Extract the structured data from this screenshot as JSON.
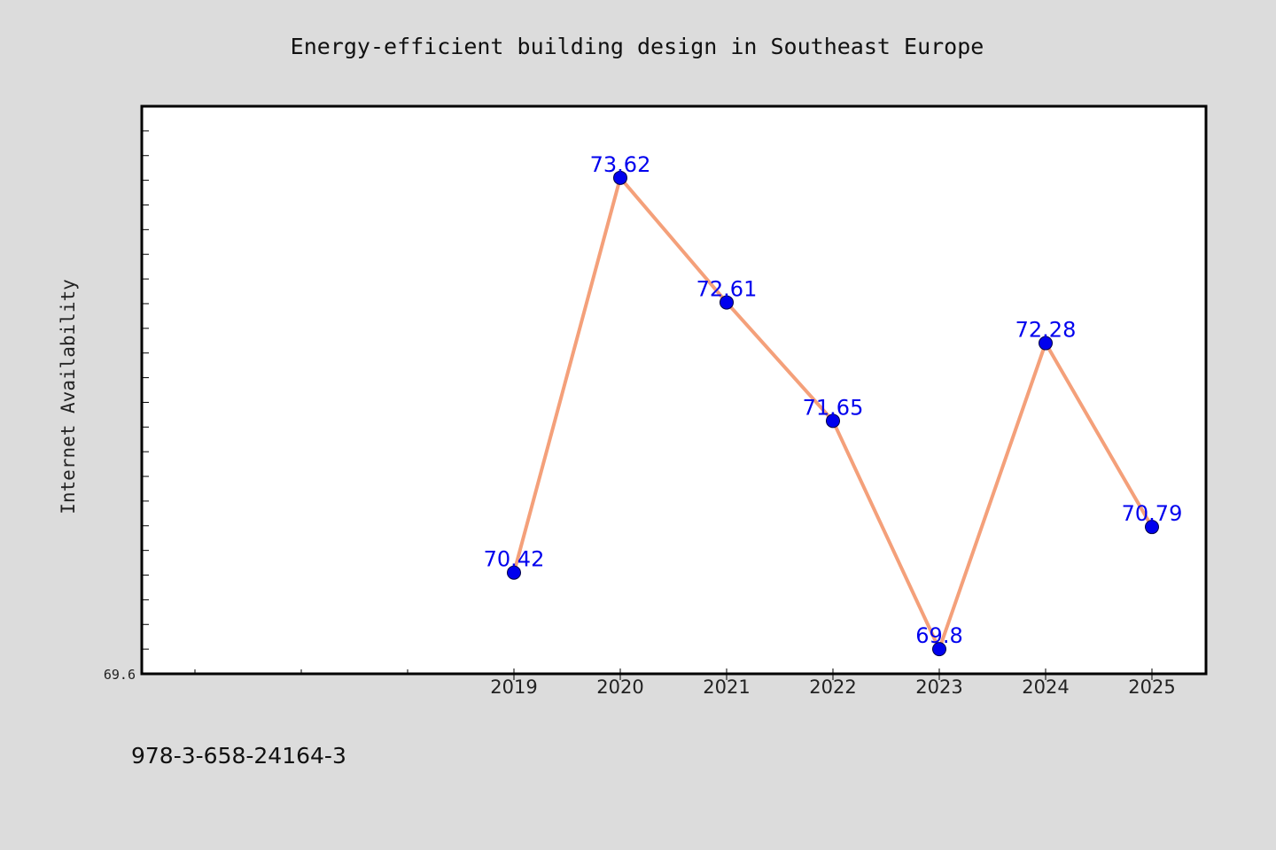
{
  "colors": {
    "background": "#dcdcdc",
    "plot_background": "#ffffff",
    "frame": "#000000",
    "line": "#f4a07a",
    "marker": "#0000ee",
    "data_label": "#0000ee"
  },
  "footer": {
    "text": "978-3-658-24164-3"
  },
  "chart_data": {
    "type": "line",
    "title": "Energy-efficient building design in Southeast Europe",
    "xlabel": "",
    "ylabel": "Internet Availability",
    "categories": [
      "2019",
      "2020",
      "2021",
      "2022",
      "2023",
      "2024",
      "2025"
    ],
    "series": [
      {
        "values": [
          70.42,
          73.62,
          72.61,
          71.65,
          69.8,
          72.28,
          70.79
        ]
      }
    ],
    "data_labels": [
      "70.42",
      "73.62",
      "72.61",
      "71.65",
      "69.8",
      "72.28",
      "70.79"
    ],
    "y_tick_labels": [
      "69.6"
    ],
    "ylim": [
      69.6,
      74.2
    ],
    "grid": false,
    "legend": "none"
  }
}
